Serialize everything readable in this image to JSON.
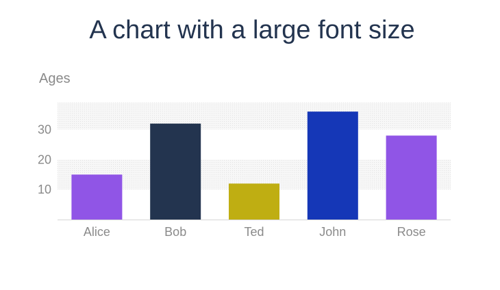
{
  "chart_data": {
    "type": "bar",
    "title": "A chart with a large font size",
    "xlabel": "",
    "ylabel": "Ages",
    "categories": [
      "Alice",
      "Bob",
      "Ted",
      "John",
      "Rose"
    ],
    "values": [
      15,
      32,
      12,
      36,
      28
    ],
    "colors": [
      "#9055e6",
      "#23344f",
      "#bfae12",
      "#1537b7",
      "#9055e6"
    ],
    "yticks": [
      10,
      20,
      30
    ],
    "ylim": [
      0,
      39
    ],
    "grid": "alternating bands",
    "legend": "none"
  }
}
